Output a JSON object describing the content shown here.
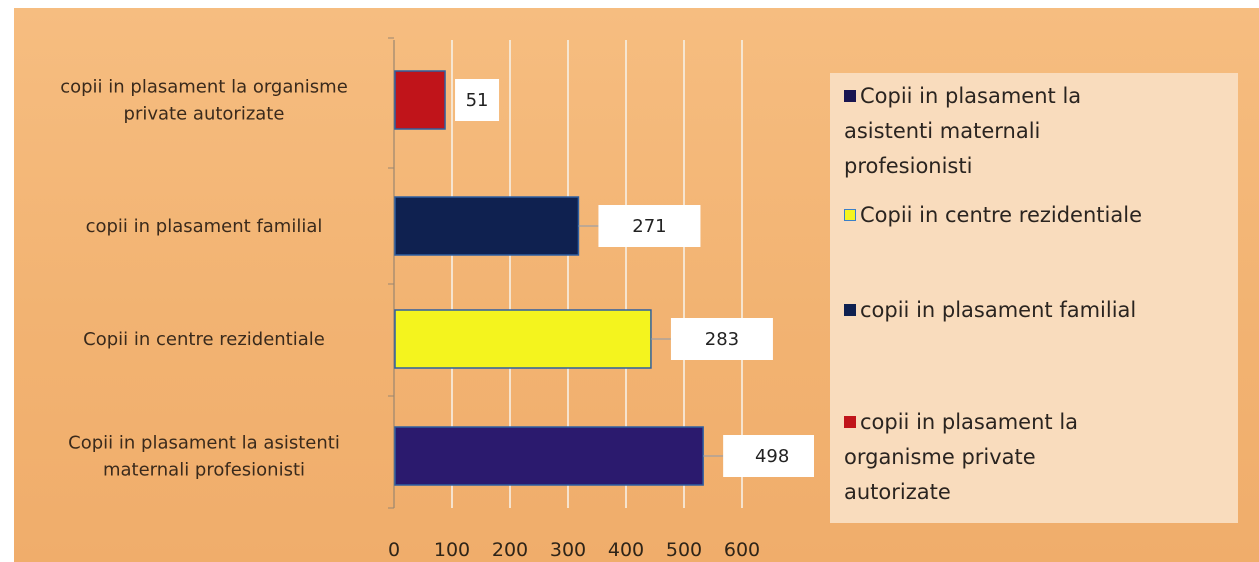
{
  "chart_data": {
    "type": "bar",
    "orientation": "horizontal",
    "categories": [
      "copii in plasament la organisme private autorizate",
      "copii in plasament familial",
      "Copii in centre rezidentiale",
      "Copii in plasament la asistenti maternali profesionisti"
    ],
    "category_label_lines": [
      [
        "copii in plasament la organisme",
        "private autorizate"
      ],
      [
        "copii in plasament familial"
      ],
      [
        "Copii in centre rezidentiale"
      ],
      [
        "Copii in plasament la asistenti",
        "maternali profesionisti"
      ]
    ],
    "values": [
      51,
      271,
      283,
      498
    ],
    "bar_extent_values": [
      88,
      318,
      443,
      533
    ],
    "data_labels": [
      "51",
      "271",
      "283",
      "498"
    ],
    "bar_colors": [
      "#c0141a",
      "#0f2150",
      "#f4f41e",
      "#2b1a6e"
    ],
    "xlim": [
      0,
      600
    ],
    "x_ticks": [
      "0",
      "100",
      "200",
      "300",
      "400",
      "500",
      "600"
    ],
    "grid": true,
    "legend_position": "right",
    "legend": [
      {
        "label": "Copii in plasament la asistenti maternali profesionisti",
        "lines": [
          "Copii in plasament la",
          "asistenti maternali",
          "profesionisti"
        ],
        "color": "#1a1550"
      },
      {
        "label": "Copii in centre rezidentiale",
        "lines": [
          "Copii in centre rezidentiale"
        ],
        "color": "#f4f41e"
      },
      {
        "label": "copii in plasament familial",
        "lines": [
          "copii in plasament familial"
        ],
        "color": "#0f2150"
      },
      {
        "label": "copii in plasament la organisme private autorizate",
        "lines": [
          "copii in plasament la",
          "organisme private",
          "autorizate"
        ],
        "color": "#c0141a"
      }
    ]
  }
}
